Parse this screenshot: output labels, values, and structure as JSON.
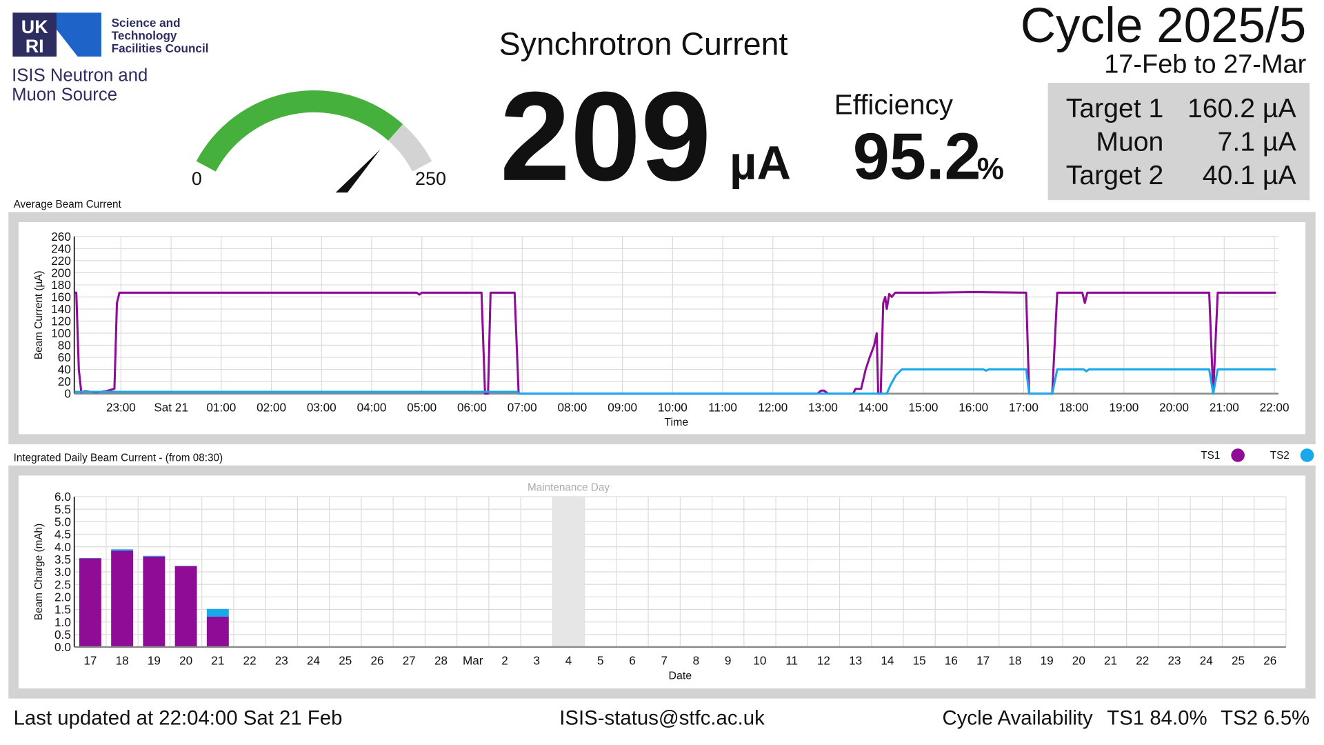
{
  "header": {
    "logo": [
      "UK",
      "RI"
    ],
    "council": [
      "Science and",
      "Technology",
      "Facilities Council"
    ],
    "facility": [
      "ISIS Neutron and",
      "Muon Source"
    ]
  },
  "gauge": {
    "min": 0,
    "max": 250,
    "color": "#45b03b",
    "track_color": "#d3d3d3"
  },
  "current": {
    "title": "Synchrotron Current",
    "value": 209,
    "unit": "µA"
  },
  "efficiency": {
    "label": "Efficiency",
    "value": 95.2,
    "unit": "%"
  },
  "cycle": {
    "title": "Cycle 2025/5",
    "dates": "17-Feb to 27-Mar"
  },
  "targets": {
    "rows": [
      {
        "name": "Target 1",
        "value": "160.2 µA"
      },
      {
        "name": "Muon",
        "value": "7.1 µA"
      },
      {
        "name": "Target 2",
        "value": "40.1 µA"
      }
    ]
  },
  "footer": {
    "updated": "Last updated at 22:04:00 Sat 21 Feb",
    "email": "ISIS-status@stfc.ac.uk",
    "availability_label": "Cycle Availability",
    "availability": [
      "TS1 84.0%",
      "TS2 6.5%"
    ]
  },
  "chart_data": [
    {
      "type": "line",
      "title": "Average Beam Current",
      "y_label": "Beam Current (µA)",
      "x_label": "Time",
      "xlim": [
        22.07,
        46.08
      ],
      "xticks": [
        {
          "value": 23,
          "label": "23:00"
        },
        {
          "value": 24,
          "label": "Sat 21"
        },
        {
          "value": 25,
          "label": "01:00"
        },
        {
          "value": 26,
          "label": "02:00"
        },
        {
          "value": 27,
          "label": "03:00"
        },
        {
          "value": 28,
          "label": "04:00"
        },
        {
          "value": 29,
          "label": "05:00"
        },
        {
          "value": 30,
          "label": "06:00"
        },
        {
          "value": 31,
          "label": "07:00"
        },
        {
          "value": 32,
          "label": "08:00"
        },
        {
          "value": 33,
          "label": "09:00"
        },
        {
          "value": 34,
          "label": "10:00"
        },
        {
          "value": 35,
          "label": "11:00"
        },
        {
          "value": 36,
          "label": "12:00"
        },
        {
          "value": 37,
          "label": "13:00"
        },
        {
          "value": 38,
          "label": "14:00"
        },
        {
          "value": 39,
          "label": "15:00"
        },
        {
          "value": 40,
          "label": "16:00"
        },
        {
          "value": 41,
          "label": "17:00"
        },
        {
          "value": 42,
          "label": "18:00"
        },
        {
          "value": 43,
          "label": "19:00"
        },
        {
          "value": 44,
          "label": "20:00"
        },
        {
          "value": 45,
          "label": "21:00"
        },
        {
          "value": 46,
          "label": "22:00"
        }
      ],
      "ylim": [
        0,
        260
      ],
      "yticks": [
        0,
        20,
        40,
        60,
        80,
        100,
        120,
        140,
        160,
        180,
        200,
        220,
        240,
        260
      ],
      "grid": true,
      "series": [
        {
          "color": "#8e0c96",
          "x": [
            22.07,
            22.11,
            22.16,
            22.21,
            22.28,
            22.5,
            22.7,
            22.87,
            22.92,
            22.97,
            25,
            27,
            28.9,
            28.95,
            29,
            30.19,
            30.26,
            30.32,
            30.37,
            30.85,
            30.93,
            33,
            36.89,
            36.96,
            37.02,
            37.1,
            37.6,
            37.65,
            37.76,
            37.85,
            37.93,
            38.02,
            38.07,
            38.1,
            38.15,
            38.2,
            38.24,
            38.27,
            38.32,
            38.37,
            38.44,
            39.11,
            40,
            41.05,
            41.11,
            41.57,
            41.67,
            42.17,
            42.22,
            42.27,
            43,
            44.7,
            44.78,
            44.87,
            46.03
          ],
          "values": [
            167,
            167,
            40,
            2,
            4,
            2,
            4,
            8,
            150,
            167,
            167,
            167,
            167,
            164,
            167,
            167,
            0,
            0,
            167,
            167,
            0,
            0,
            0,
            5,
            5,
            0,
            0,
            8,
            8,
            40,
            60,
            80,
            100,
            0,
            0,
            150,
            160,
            140,
            165,
            160,
            167,
            167,
            168,
            167,
            0,
            0,
            167,
            167,
            150,
            167,
            167,
            167,
            0,
            167,
            167
          ]
        },
        {
          "color": "#1aa7ec",
          "x": [
            22.07,
            30.9,
            30.93,
            38.27,
            38.35,
            38.45,
            38.57,
            39,
            40.2,
            40.25,
            40.3,
            41.05,
            41.11,
            41.57,
            41.67,
            42.2,
            42.25,
            42.3,
            44.7,
            44.78,
            44.87,
            46.03
          ],
          "values": [
            3,
            3,
            0,
            0,
            15,
            30,
            40,
            40,
            40,
            38,
            40,
            40,
            0,
            0,
            40,
            40,
            37,
            40,
            40,
            0,
            40,
            40
          ]
        }
      ]
    },
    {
      "type": "bar",
      "stacked": true,
      "title": "Integrated Daily Beam Current - (from 08:30)",
      "y_label": "Beam Charge (mAh)",
      "x_label": "Date",
      "categories": [
        "17",
        "18",
        "19",
        "20",
        "21",
        "22",
        "23",
        "24",
        "25",
        "26",
        "27",
        "28",
        "Mar",
        "2",
        "3",
        "4",
        "5",
        "6",
        "7",
        "8",
        "9",
        "10",
        "11",
        "12",
        "13",
        "14",
        "15",
        "16",
        "17",
        "18",
        "19",
        "20",
        "21",
        "22",
        "23",
        "24",
        "25",
        "26"
      ],
      "ylim": [
        0,
        6
      ],
      "yticks": [
        {
          "value": 0,
          "label": "0.0"
        },
        0.5,
        {
          "value": 1,
          "label": "1.0"
        },
        1.5,
        {
          "value": 2,
          "label": "2.0"
        },
        2.5,
        {
          "value": 3,
          "label": "3.0"
        },
        3.5,
        {
          "value": 4,
          "label": "4.0"
        },
        4.5,
        {
          "value": 5,
          "label": "5.0"
        },
        5.5,
        {
          "value": 6,
          "label": "6.0"
        }
      ],
      "grid": true,
      "legend": "top-right",
      "series": [
        {
          "name": "TS1",
          "color": "#8e0c96",
          "values": [
            3.54,
            3.84,
            3.61,
            3.23,
            1.21,
            null,
            null,
            null,
            null,
            null,
            null,
            null,
            null,
            null,
            null,
            null,
            null,
            null,
            null,
            null,
            null,
            null,
            null,
            null,
            null,
            null,
            null,
            null,
            null,
            null,
            null,
            null,
            null,
            null,
            null,
            null,
            null,
            null
          ]
        },
        {
          "name": "TS2",
          "color": "#1aa7ec",
          "values": [
            0.01,
            0.06,
            0.03,
            0.01,
            0.31,
            null,
            null,
            null,
            null,
            null,
            null,
            null,
            null,
            null,
            null,
            null,
            null,
            null,
            null,
            null,
            null,
            null,
            null,
            null,
            null,
            null,
            null,
            null,
            null,
            null,
            null,
            null,
            null,
            null,
            null,
            null,
            null,
            null
          ]
        }
      ],
      "annotations": [
        {
          "text": "Maintenance Day",
          "category": "4"
        }
      ]
    }
  ]
}
